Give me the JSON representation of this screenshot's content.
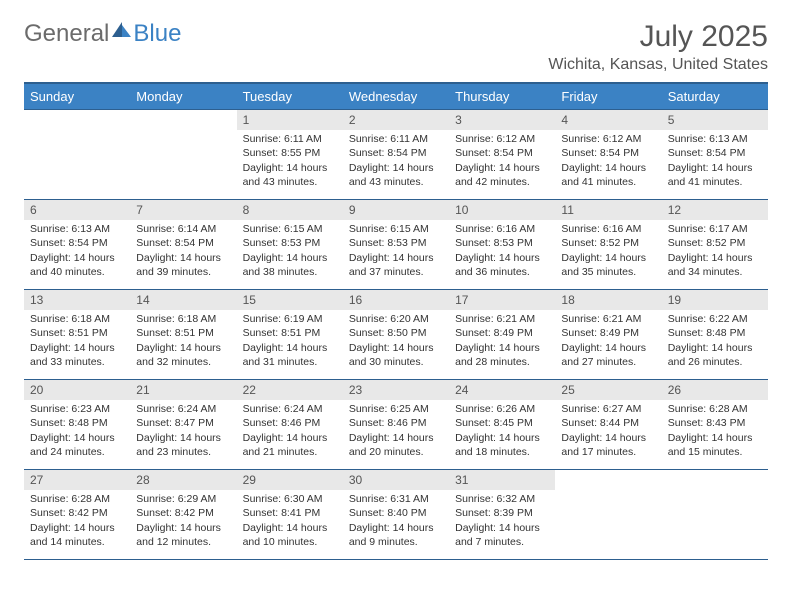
{
  "logo": {
    "text_gray": "General",
    "text_blue": "Blue"
  },
  "title": "July 2025",
  "location": "Wichita, Kansas, United States",
  "weekdays": [
    "Sunday",
    "Monday",
    "Tuesday",
    "Wednesday",
    "Thursday",
    "Friday",
    "Saturday"
  ],
  "colors": {
    "header_bg": "#3b82c4",
    "header_border": "#2d5f8f",
    "daynum_bg": "#e8e8e8",
    "text_dark": "#333333",
    "text_muted": "#555555"
  },
  "weeks": [
    [
      {
        "n": "",
        "rise": "",
        "set": "",
        "day": ""
      },
      {
        "n": "",
        "rise": "",
        "set": "",
        "day": ""
      },
      {
        "n": "1",
        "rise": "Sunrise: 6:11 AM",
        "set": "Sunset: 8:55 PM",
        "day": "Daylight: 14 hours and 43 minutes."
      },
      {
        "n": "2",
        "rise": "Sunrise: 6:11 AM",
        "set": "Sunset: 8:54 PM",
        "day": "Daylight: 14 hours and 43 minutes."
      },
      {
        "n": "3",
        "rise": "Sunrise: 6:12 AM",
        "set": "Sunset: 8:54 PM",
        "day": "Daylight: 14 hours and 42 minutes."
      },
      {
        "n": "4",
        "rise": "Sunrise: 6:12 AM",
        "set": "Sunset: 8:54 PM",
        "day": "Daylight: 14 hours and 41 minutes."
      },
      {
        "n": "5",
        "rise": "Sunrise: 6:13 AM",
        "set": "Sunset: 8:54 PM",
        "day": "Daylight: 14 hours and 41 minutes."
      }
    ],
    [
      {
        "n": "6",
        "rise": "Sunrise: 6:13 AM",
        "set": "Sunset: 8:54 PM",
        "day": "Daylight: 14 hours and 40 minutes."
      },
      {
        "n": "7",
        "rise": "Sunrise: 6:14 AM",
        "set": "Sunset: 8:54 PM",
        "day": "Daylight: 14 hours and 39 minutes."
      },
      {
        "n": "8",
        "rise": "Sunrise: 6:15 AM",
        "set": "Sunset: 8:53 PM",
        "day": "Daylight: 14 hours and 38 minutes."
      },
      {
        "n": "9",
        "rise": "Sunrise: 6:15 AM",
        "set": "Sunset: 8:53 PM",
        "day": "Daylight: 14 hours and 37 minutes."
      },
      {
        "n": "10",
        "rise": "Sunrise: 6:16 AM",
        "set": "Sunset: 8:53 PM",
        "day": "Daylight: 14 hours and 36 minutes."
      },
      {
        "n": "11",
        "rise": "Sunrise: 6:16 AM",
        "set": "Sunset: 8:52 PM",
        "day": "Daylight: 14 hours and 35 minutes."
      },
      {
        "n": "12",
        "rise": "Sunrise: 6:17 AM",
        "set": "Sunset: 8:52 PM",
        "day": "Daylight: 14 hours and 34 minutes."
      }
    ],
    [
      {
        "n": "13",
        "rise": "Sunrise: 6:18 AM",
        "set": "Sunset: 8:51 PM",
        "day": "Daylight: 14 hours and 33 minutes."
      },
      {
        "n": "14",
        "rise": "Sunrise: 6:18 AM",
        "set": "Sunset: 8:51 PM",
        "day": "Daylight: 14 hours and 32 minutes."
      },
      {
        "n": "15",
        "rise": "Sunrise: 6:19 AM",
        "set": "Sunset: 8:51 PM",
        "day": "Daylight: 14 hours and 31 minutes."
      },
      {
        "n": "16",
        "rise": "Sunrise: 6:20 AM",
        "set": "Sunset: 8:50 PM",
        "day": "Daylight: 14 hours and 30 minutes."
      },
      {
        "n": "17",
        "rise": "Sunrise: 6:21 AM",
        "set": "Sunset: 8:49 PM",
        "day": "Daylight: 14 hours and 28 minutes."
      },
      {
        "n": "18",
        "rise": "Sunrise: 6:21 AM",
        "set": "Sunset: 8:49 PM",
        "day": "Daylight: 14 hours and 27 minutes."
      },
      {
        "n": "19",
        "rise": "Sunrise: 6:22 AM",
        "set": "Sunset: 8:48 PM",
        "day": "Daylight: 14 hours and 26 minutes."
      }
    ],
    [
      {
        "n": "20",
        "rise": "Sunrise: 6:23 AM",
        "set": "Sunset: 8:48 PM",
        "day": "Daylight: 14 hours and 24 minutes."
      },
      {
        "n": "21",
        "rise": "Sunrise: 6:24 AM",
        "set": "Sunset: 8:47 PM",
        "day": "Daylight: 14 hours and 23 minutes."
      },
      {
        "n": "22",
        "rise": "Sunrise: 6:24 AM",
        "set": "Sunset: 8:46 PM",
        "day": "Daylight: 14 hours and 21 minutes."
      },
      {
        "n": "23",
        "rise": "Sunrise: 6:25 AM",
        "set": "Sunset: 8:46 PM",
        "day": "Daylight: 14 hours and 20 minutes."
      },
      {
        "n": "24",
        "rise": "Sunrise: 6:26 AM",
        "set": "Sunset: 8:45 PM",
        "day": "Daylight: 14 hours and 18 minutes."
      },
      {
        "n": "25",
        "rise": "Sunrise: 6:27 AM",
        "set": "Sunset: 8:44 PM",
        "day": "Daylight: 14 hours and 17 minutes."
      },
      {
        "n": "26",
        "rise": "Sunrise: 6:28 AM",
        "set": "Sunset: 8:43 PM",
        "day": "Daylight: 14 hours and 15 minutes."
      }
    ],
    [
      {
        "n": "27",
        "rise": "Sunrise: 6:28 AM",
        "set": "Sunset: 8:42 PM",
        "day": "Daylight: 14 hours and 14 minutes."
      },
      {
        "n": "28",
        "rise": "Sunrise: 6:29 AM",
        "set": "Sunset: 8:42 PM",
        "day": "Daylight: 14 hours and 12 minutes."
      },
      {
        "n": "29",
        "rise": "Sunrise: 6:30 AM",
        "set": "Sunset: 8:41 PM",
        "day": "Daylight: 14 hours and 10 minutes."
      },
      {
        "n": "30",
        "rise": "Sunrise: 6:31 AM",
        "set": "Sunset: 8:40 PM",
        "day": "Daylight: 14 hours and 9 minutes."
      },
      {
        "n": "31",
        "rise": "Sunrise: 6:32 AM",
        "set": "Sunset: 8:39 PM",
        "day": "Daylight: 14 hours and 7 minutes."
      },
      {
        "n": "",
        "rise": "",
        "set": "",
        "day": ""
      },
      {
        "n": "",
        "rise": "",
        "set": "",
        "day": ""
      }
    ]
  ]
}
